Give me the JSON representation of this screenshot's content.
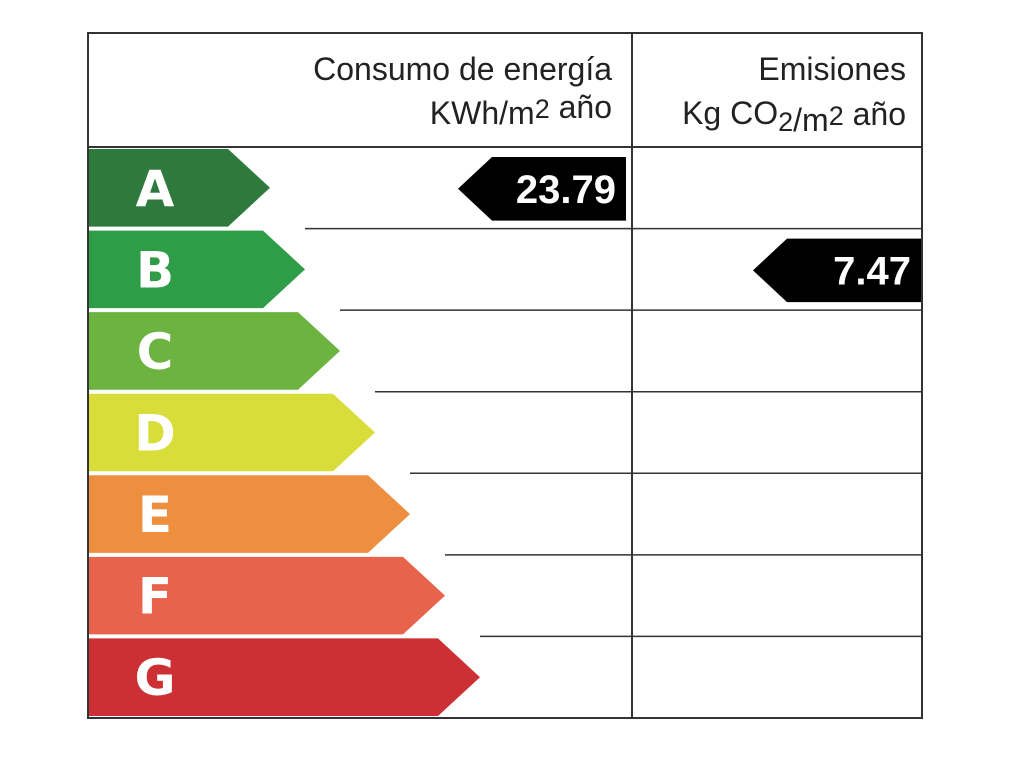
{
  "header": {
    "energy": {
      "title": "Consumo de energía",
      "unit": [
        "KWh/m",
        "2",
        " año"
      ]
    },
    "emissions": {
      "title": "Emisiones",
      "unit": [
        "Kg CO",
        "2",
        "/m",
        "2",
        " año"
      ]
    }
  },
  "ratings": [
    {
      "letter": "A",
      "color": "#2e7a3c"
    },
    {
      "letter": "B",
      "color": "#2f9c47"
    },
    {
      "letter": "C",
      "color": "#6cb33f"
    },
    {
      "letter": "D",
      "color": "#d9dd3a"
    },
    {
      "letter": "E",
      "color": "#ee8f40"
    },
    {
      "letter": "F",
      "color": "#e8634b"
    },
    {
      "letter": "G",
      "color": "#cc3034"
    }
  ],
  "energy": {
    "rating": "A",
    "value": 23.79
  },
  "emissions": {
    "rating": "B",
    "value": 7.47
  }
}
